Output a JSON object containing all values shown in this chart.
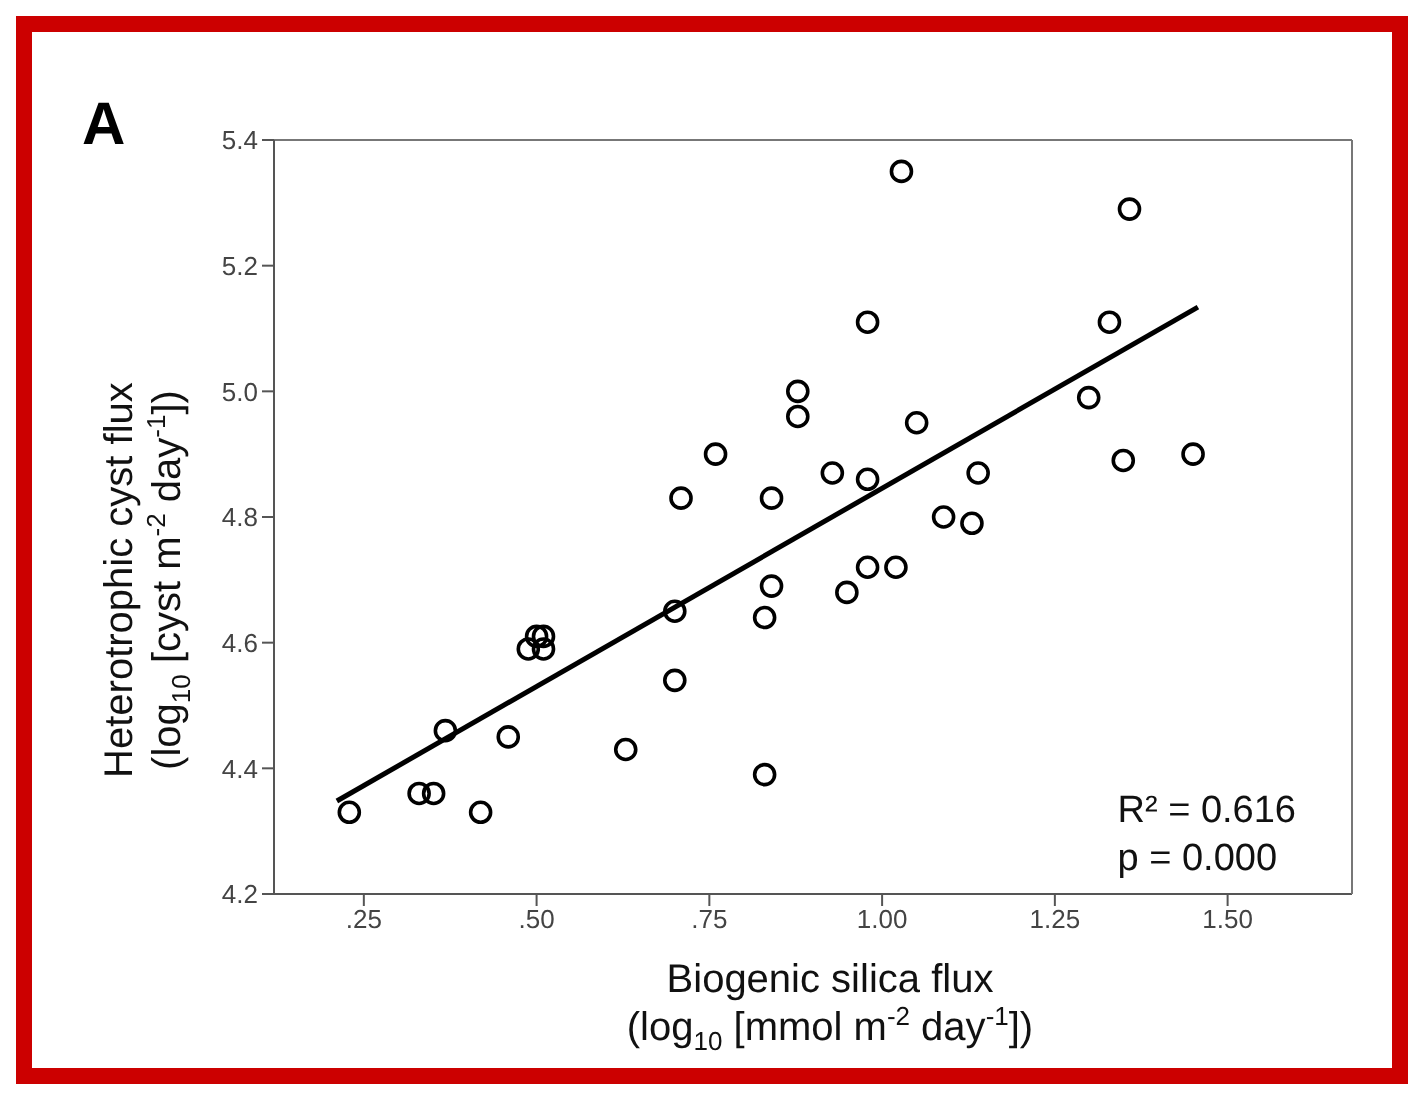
{
  "chart_data": {
    "type": "scatter",
    "xlabel": "Biogenic silica flux\n(log$_{10}$ [mmol m$^{-2}$ day$^{-1}$])",
    "ylabel": "Heterotrophic cyst flux\n(log$_{10}$ [cyst m$^{-2}$ day$^{-1}$])",
    "xlim": [
      0.12,
      1.68
    ],
    "ylim": [
      4.2,
      5.4
    ],
    "xticks": [
      {
        "value": 0.25,
        "label": ".25"
      },
      {
        "value": 0.5,
        "label": ".50"
      },
      {
        "value": 0.75,
        "label": ".75"
      },
      {
        "value": 1.0,
        "label": "1.00"
      },
      {
        "value": 1.25,
        "label": "1.25"
      },
      {
        "value": 1.5,
        "label": "1.50"
      }
    ],
    "yticks": [
      {
        "value": 4.2,
        "label": "4.2"
      },
      {
        "value": 4.4,
        "label": "4.4"
      },
      {
        "value": 4.6,
        "label": "4.6"
      },
      {
        "value": 4.8,
        "label": "4.8"
      },
      {
        "value": 5.0,
        "label": "5.0"
      },
      {
        "value": 5.2,
        "label": "5.2"
      },
      {
        "value": 5.4,
        "label": "5.4"
      }
    ],
    "grid": false,
    "legend": false,
    "annotations": [
      "A",
      "R² = 0.616",
      "p = 0.000"
    ],
    "series": [
      {
        "marker": "circle",
        "color": "#000000",
        "x": [
          0.229,
          0.33,
          0.351,
          0.368,
          0.419,
          0.459,
          0.488,
          0.5,
          0.51,
          0.51,
          0.629,
          0.7,
          0.7,
          0.709,
          0.759,
          0.83,
          0.83,
          0.84,
          0.84,
          0.878,
          0.878,
          0.928,
          0.949,
          1.028,
          0.979,
          1.358,
          1.329,
          1.299,
          1.349,
          1.45,
          1.05,
          0.979,
          1.139,
          1.089,
          1.13,
          0.979,
          1.02
        ],
        "values": [
          4.33,
          4.36,
          4.36,
          4.46,
          4.33,
          4.45,
          4.59,
          4.61,
          4.61,
          4.59,
          4.43,
          4.65,
          4.54,
          4.83,
          4.9,
          4.39,
          4.64,
          4.69,
          4.83,
          4.96,
          5.0,
          4.87,
          4.68,
          5.35,
          5.11,
          5.29,
          5.11,
          4.99,
          4.89,
          4.9,
          4.95,
          4.86,
          4.87,
          4.8,
          4.79,
          4.72,
          4.72
        ]
      },
      {
        "type": "line",
        "marker": "none",
        "color": "#000000",
        "x": [
          0.211,
          1.457
        ],
        "values": [
          4.348,
          5.134
        ]
      }
    ]
  }
}
